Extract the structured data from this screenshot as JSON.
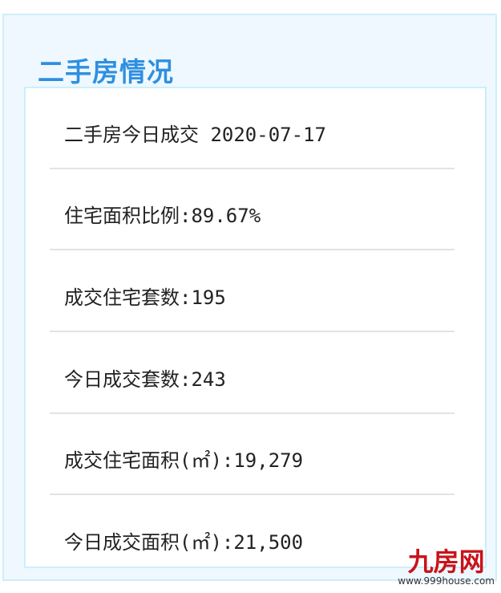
{
  "title": "二手房情况",
  "rows": [
    "二手房今日成交 2020-07-17",
    "住宅面积比例:89.67%",
    "成交住宅套数:195",
    "今日成交套数:243",
    "成交住宅面积(㎡):19,279",
    "今日成交面积(㎡):21,500"
  ],
  "watermark": {
    "logo": "九房网",
    "url": "www.999house.com"
  },
  "colors": {
    "title": "#2f8fe0",
    "panel_bg": "#eef8fe",
    "border": "#cdeefb",
    "watermark": "#c9131b"
  }
}
